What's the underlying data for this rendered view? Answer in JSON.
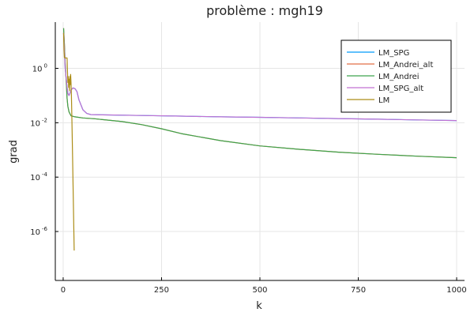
{
  "chart_data": {
    "type": "line",
    "title": "problème : mgh19",
    "xlabel": "k",
    "ylabel": "grad",
    "xlim": [
      -20,
      1020
    ],
    "ylim_log10": [
      -7.8,
      1.7
    ],
    "yscale": "log",
    "grid": true,
    "legend_placement": "top-right",
    "x_ticks": [
      {
        "value": 0,
        "label": "0"
      },
      {
        "value": 250,
        "label": "250"
      },
      {
        "value": 500,
        "label": "500"
      },
      {
        "value": 750,
        "label": "750"
      },
      {
        "value": 1000,
        "label": "1000"
      }
    ],
    "y_ticks": [
      {
        "exp": 0,
        "base": "10",
        "sup": "0"
      },
      {
        "exp": -2,
        "base": "10",
        "sup": "-2"
      },
      {
        "exp": -4,
        "base": "10",
        "sup": "-4"
      },
      {
        "exp": -6,
        "base": "10",
        "sup": "-6"
      }
    ],
    "series": [
      {
        "name": "LM_SPG",
        "color": "#009af9",
        "x": [
          1,
          3,
          5,
          8,
          10,
          12,
          15,
          18,
          20,
          25,
          30,
          35,
          40,
          50,
          60,
          70,
          80,
          100,
          200,
          300,
          400,
          500,
          600,
          700,
          800,
          900,
          1000
        ],
        "y": [
          20,
          5,
          1.0,
          0.4,
          0.2,
          0.12,
          0.1,
          0.13,
          0.16,
          0.19,
          0.18,
          0.14,
          0.07,
          0.03,
          0.022,
          0.02,
          0.0198,
          0.0195,
          0.0185,
          0.0175,
          0.0165,
          0.0158,
          0.015,
          0.0142,
          0.0135,
          0.0127,
          0.012
        ]
      },
      {
        "name": "LM_Andrei_alt",
        "color": "#e26f46",
        "x": [
          1,
          3,
          5,
          8,
          10,
          12,
          15,
          20,
          30,
          50,
          80,
          100,
          150,
          200,
          250,
          300,
          400,
          500,
          600,
          700,
          800,
          900,
          1000
        ],
        "y": [
          30,
          8,
          1.5,
          0.3,
          0.08,
          0.04,
          0.025,
          0.018,
          0.0165,
          0.015,
          0.014,
          0.013,
          0.011,
          0.0085,
          0.006,
          0.004,
          0.0022,
          0.0014,
          0.00105,
          0.00083,
          0.00069,
          0.00059,
          0.00052
        ]
      },
      {
        "name": "LM_Andrei",
        "color": "#3da44d",
        "x": [
          1,
          3,
          5,
          8,
          10,
          12,
          15,
          20,
          30,
          50,
          80,
          100,
          150,
          200,
          250,
          300,
          400,
          500,
          600,
          700,
          800,
          900,
          1000
        ],
        "y": [
          30,
          8,
          1.5,
          0.3,
          0.08,
          0.04,
          0.025,
          0.018,
          0.0165,
          0.015,
          0.014,
          0.013,
          0.011,
          0.0085,
          0.006,
          0.004,
          0.0022,
          0.0014,
          0.00105,
          0.00083,
          0.00069,
          0.00059,
          0.00052
        ]
      },
      {
        "name": "LM_SPG_alt",
        "color": "#c271d2",
        "x": [
          1,
          3,
          5,
          8,
          10,
          12,
          15,
          18,
          20,
          25,
          30,
          35,
          40,
          50,
          60,
          70,
          80,
          100,
          200,
          300,
          400,
          500,
          600,
          700,
          800,
          900,
          1000
        ],
        "y": [
          20,
          5,
          1.0,
          0.4,
          0.2,
          0.12,
          0.1,
          0.13,
          0.16,
          0.19,
          0.18,
          0.14,
          0.07,
          0.03,
          0.022,
          0.02,
          0.0198,
          0.0195,
          0.0185,
          0.0175,
          0.0165,
          0.0158,
          0.015,
          0.0142,
          0.0135,
          0.0127,
          0.012
        ]
      },
      {
        "name": "LM",
        "color": "#ac8d18",
        "x": [
          1,
          2,
          3,
          5,
          7,
          9,
          10,
          11,
          12,
          13,
          14,
          15,
          16,
          17,
          18,
          19,
          20,
          21,
          22,
          24,
          26,
          28
        ],
        "y": [
          20,
          5,
          2.5,
          2.4,
          2.4,
          2.4,
          2.4,
          0.8,
          0.3,
          0.5,
          0.2,
          0.4,
          0.15,
          0.5,
          0.25,
          0.6,
          0.3,
          0.1,
          0.02,
          0.0005,
          1e-05,
          2e-07
        ]
      }
    ]
  }
}
